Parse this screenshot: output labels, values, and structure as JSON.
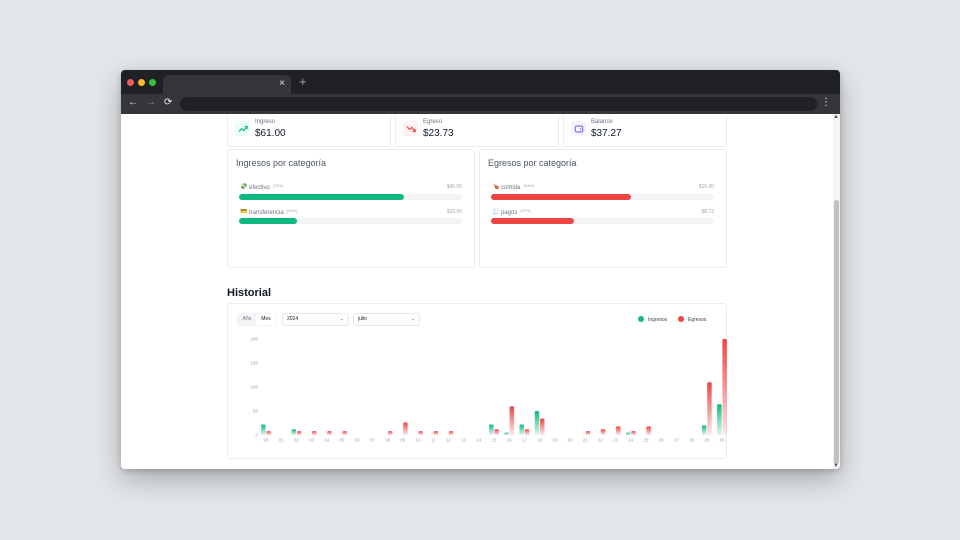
{
  "browser": {
    "tab_close": "×",
    "new_tab": "+",
    "back": "←",
    "forward": "→",
    "reload": "⟳",
    "menu": "⋮"
  },
  "summary": [
    {
      "label": "Ingreso",
      "value": "$61.00",
      "icon": "trending-up-icon",
      "color": "#10b981",
      "bg": "#ecfdf5"
    },
    {
      "label": "Egreso",
      "value": "$23.73",
      "icon": "trending-down-icon",
      "color": "#ef4444",
      "bg": "#fef2f2"
    },
    {
      "label": "Balance",
      "value": "$37.27",
      "icon": "wallet-icon",
      "color": "#8b5cf6",
      "bg": "#f5f3ff"
    }
  ],
  "ingresos": {
    "title": "Ingresos por categoría",
    "rows": [
      {
        "icon": "💸",
        "label": "efectivo",
        "pct": "(74%)",
        "amount": "$45.05",
        "fraction": 0.74
      },
      {
        "icon": "💳",
        "label": "transferencia",
        "pct": "(26%)",
        "amount": "$15.95",
        "fraction": 0.26
      }
    ]
  },
  "egresos": {
    "title": "Egresos por categoría",
    "rows": [
      {
        "icon": "🍗",
        "label": "comida",
        "pct": "(63%)",
        "amount": "$15.00",
        "fraction": 0.63
      },
      {
        "icon": "🧾",
        "label": "pagos",
        "pct": "(37%)",
        "amount": "$8.73",
        "fraction": 0.37
      }
    ]
  },
  "historial": {
    "title": "Historial",
    "toggle": {
      "year": "Año",
      "month": "Mes"
    },
    "year_select": "2024",
    "month_select": "julio",
    "chevron": "⌄",
    "legend": {
      "ingresos": "Ingresos",
      "egresos": "Egresos"
    },
    "colors": {
      "ingresos": "#10b981",
      "egresos": "#ef4444"
    }
  },
  "chart_data": {
    "type": "bar",
    "categories": [
      "00",
      "01",
      "02",
      "03",
      "04",
      "05",
      "06",
      "07",
      "08",
      "09",
      "10",
      "11",
      "12",
      "13",
      "14",
      "15",
      "16",
      "17",
      "18",
      "19",
      "20",
      "21",
      "22",
      "23",
      "24",
      "25",
      "26",
      "27",
      "28",
      "29",
      "30",
      "31"
    ],
    "yticks": [
      0,
      50,
      100,
      150,
      200
    ],
    "ylim": [
      0,
      200
    ],
    "series": [
      {
        "name": "Ingresos",
        "values": [
          22,
          0,
          12,
          0,
          0,
          0,
          0,
          0,
          0,
          0,
          0,
          0,
          0,
          0,
          0,
          22,
          5,
          22,
          50,
          0,
          0,
          0,
          0,
          0,
          5,
          0,
          0,
          0,
          0,
          20,
          64,
          0
        ]
      },
      {
        "name": "Egresos",
        "values": [
          8,
          0,
          8,
          8,
          8,
          8,
          0,
          0,
          8,
          26,
          8,
          8,
          8,
          0,
          0,
          12,
          60,
          12,
          34,
          0,
          0,
          8,
          12,
          18,
          8,
          18,
          0,
          0,
          0,
          110,
          200,
          0
        ]
      }
    ]
  }
}
